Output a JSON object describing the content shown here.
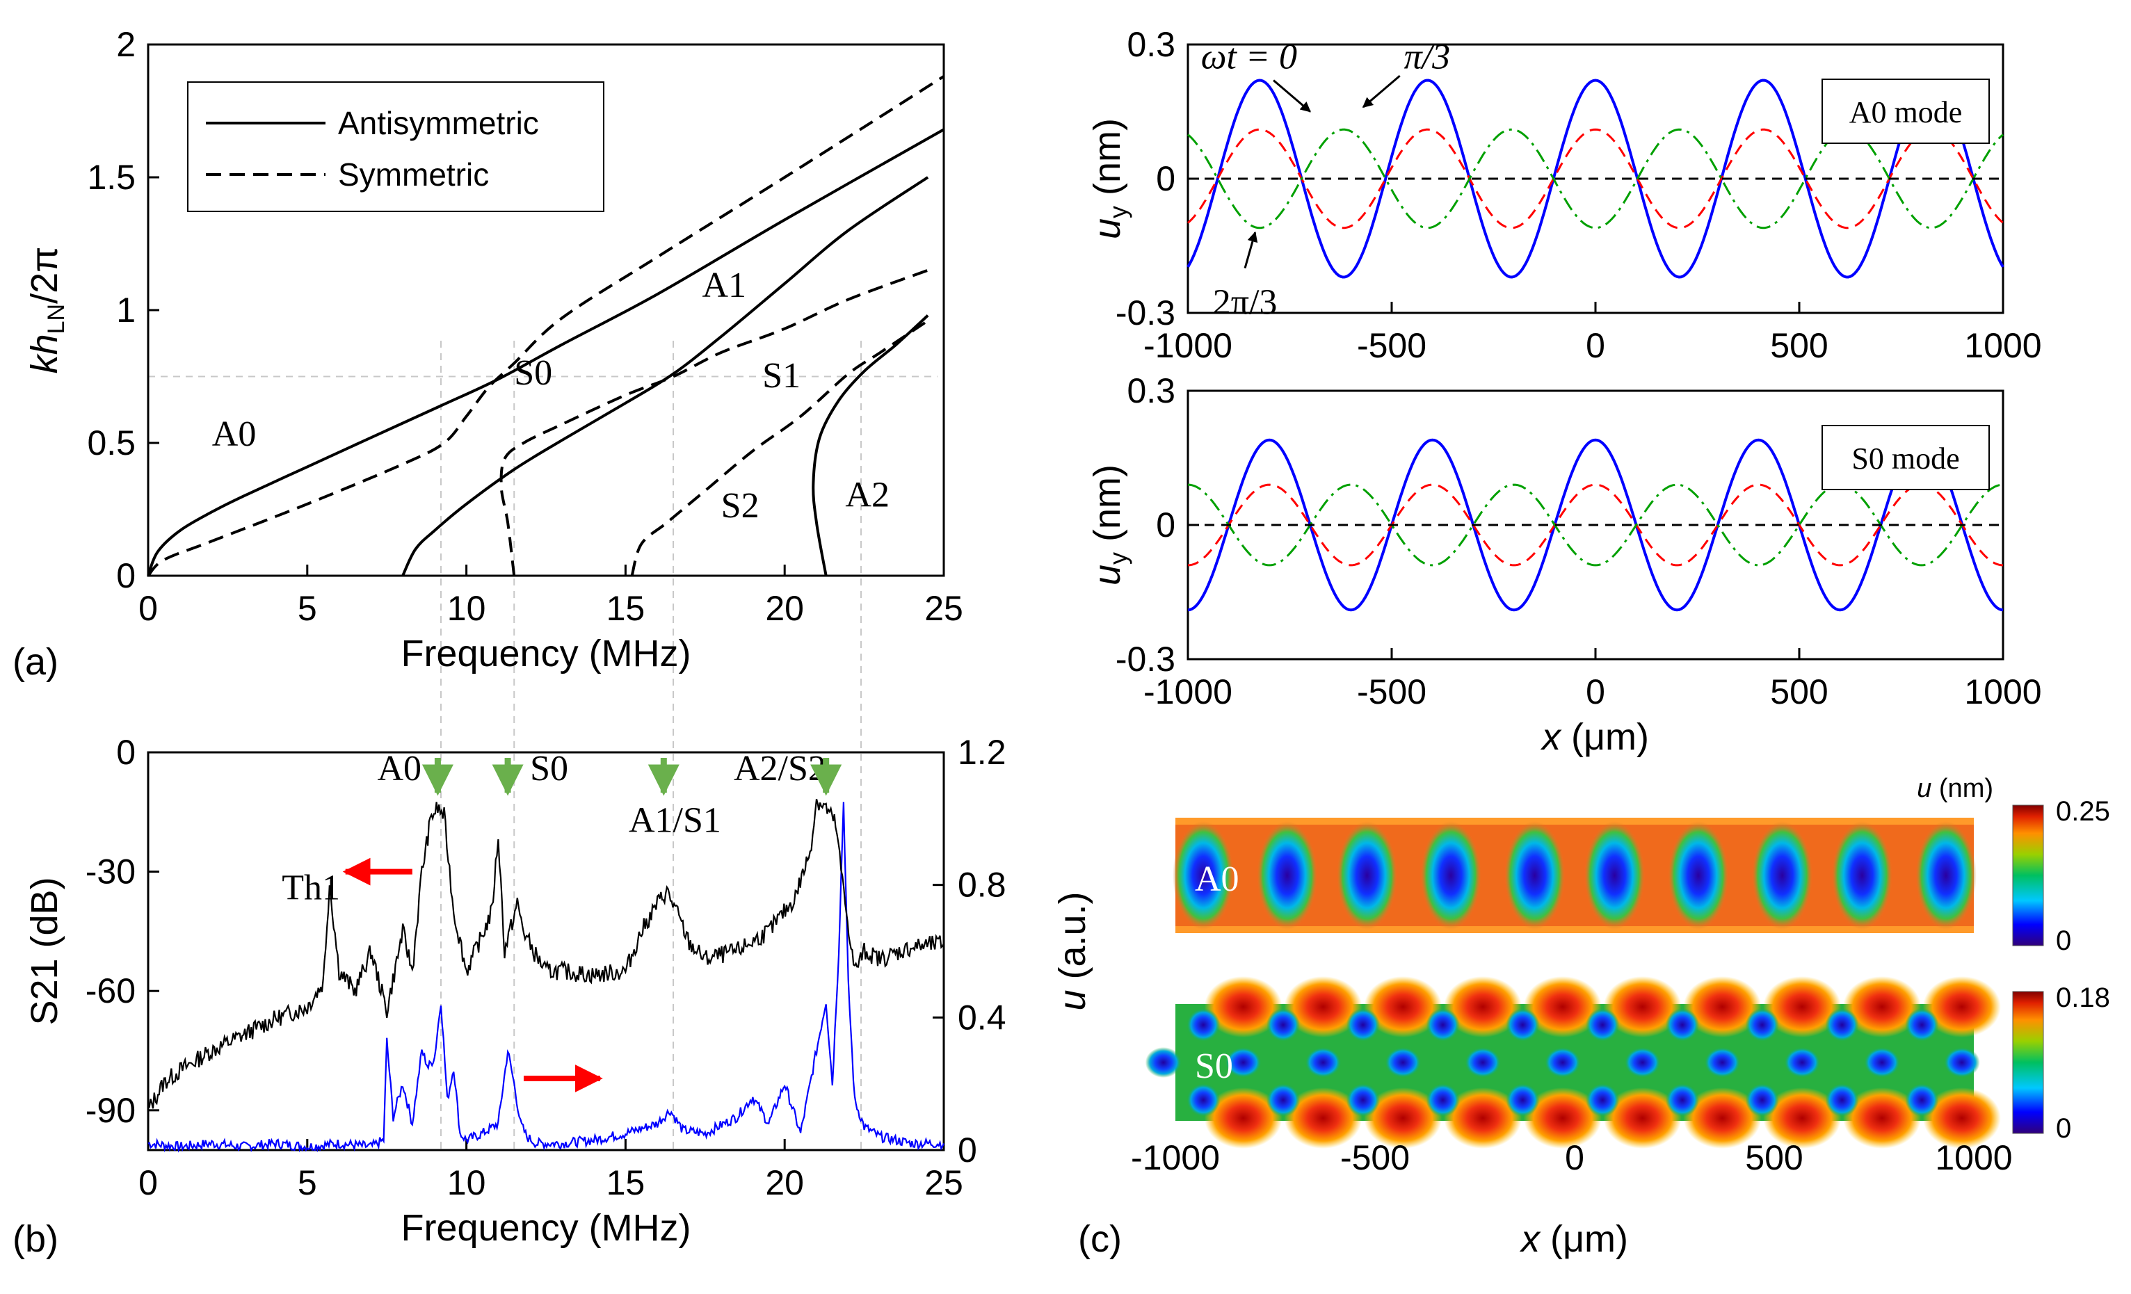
{
  "chart_data": [
    {
      "panel": "(a)",
      "type": "line",
      "title": "",
      "xlabel": "Frequency (MHz)",
      "ylabel_main": "kh",
      "ylabel_sub": "LN",
      "ylabel_tail": "/2π",
      "xlim": [
        0,
        25
      ],
      "ylim": [
        0,
        2
      ],
      "xticks": [
        "0",
        "5",
        "10",
        "15",
        "20",
        "25"
      ],
      "yticks": [
        "0",
        "0.5",
        "1",
        "1.5",
        "2"
      ],
      "legend": {
        "position": "top-left",
        "entries": [
          {
            "label": "Antisymmetric",
            "style": "solid"
          },
          {
            "label": "Symmetric",
            "style": "dashed"
          }
        ]
      },
      "reference_guides": {
        "horizontal_y": 0.75,
        "vertical_x": [
          9.2,
          11.5,
          16.5,
          22.4
        ]
      },
      "series": [
        {
          "name": "A0",
          "style": "solid",
          "x": [
            0,
            0.3,
            1,
            2,
            3,
            5,
            7,
            9.2,
            11,
            13,
            16,
            20,
            25
          ],
          "y": [
            0,
            0.09,
            0.17,
            0.24,
            0.3,
            0.41,
            0.52,
            0.64,
            0.74,
            0.87,
            1.06,
            1.34,
            1.68
          ]
        },
        {
          "name": "S0",
          "style": "dashed",
          "x": [
            0,
            0.5,
            2,
            5,
            8,
            9.3,
            10,
            10.7,
            11.5,
            13,
            16,
            20,
            25
          ],
          "y": [
            0,
            0.06,
            0.13,
            0.27,
            0.42,
            0.5,
            0.6,
            0.71,
            0.8,
            0.97,
            1.2,
            1.5,
            1.88
          ]
        },
        {
          "name": "A1",
          "style": "solid",
          "x": [
            8.0,
            8.4,
            9.0,
            10,
            11.5,
            13,
            15,
            16.5,
            18,
            20,
            22,
            24.5
          ],
          "y": [
            0,
            0.1,
            0.17,
            0.27,
            0.4,
            0.51,
            0.65,
            0.76,
            0.9,
            1.1,
            1.3,
            1.5
          ]
        },
        {
          "name": "S1",
          "style": "dashed",
          "x": [
            11.5,
            11.3,
            11.1,
            11.2,
            11.8,
            13,
            15,
            16.5,
            18,
            20,
            22,
            24.5
          ],
          "y": [
            0,
            0.2,
            0.33,
            0.44,
            0.5,
            0.57,
            0.68,
            0.75,
            0.84,
            0.93,
            1.04,
            1.15
          ]
        },
        {
          "name": "S2",
          "style": "dashed",
          "x": [
            15.2,
            15.5,
            16.3,
            17.5,
            19,
            20.5,
            22,
            23,
            24.5
          ],
          "y": [
            0,
            0.12,
            0.2,
            0.32,
            0.47,
            0.6,
            0.76,
            0.84,
            0.96
          ]
        },
        {
          "name": "A2",
          "style": "solid",
          "x": [
            21.3,
            21.0,
            20.9,
            21.1,
            21.7,
            22.5,
            23.5,
            24.5
          ],
          "y": [
            0,
            0.2,
            0.35,
            0.52,
            0.66,
            0.77,
            0.87,
            0.98
          ]
        }
      ],
      "curve_labels": [
        {
          "text": "A0",
          "x": 2.7,
          "y": 0.49
        },
        {
          "text": "S0",
          "x": 12.1,
          "y": 0.72
        },
        {
          "text": "A1",
          "x": 18.1,
          "y": 1.05
        },
        {
          "text": "S1",
          "x": 19.9,
          "y": 0.71
        },
        {
          "text": "S2",
          "x": 18.6,
          "y": 0.22
        },
        {
          "text": "A2",
          "x": 22.6,
          "y": 0.26
        }
      ]
    },
    {
      "panel": "(b)",
      "type": "line",
      "xlabel": "Frequency (MHz)",
      "ylabel_left": "S21 (dB)",
      "ylabel_right_main": "u",
      "ylabel_right_tail": " (a.u.)",
      "xlim": [
        0,
        25
      ],
      "ylim_left": [
        -100,
        0
      ],
      "ylim_right": [
        0,
        1.2
      ],
      "xticks": [
        "0",
        "5",
        "10",
        "15",
        "20",
        "25"
      ],
      "yticks_left": [
        "0",
        "-30",
        "-60",
        "-90"
      ],
      "yticks_left_values": [
        0,
        -30,
        -60,
        -90
      ],
      "yticks_right": [
        "0",
        "0.4",
        "0.8",
        "1.2"
      ],
      "yticks_right_values": [
        0,
        0.4,
        0.8,
        1.2
      ],
      "series": [
        {
          "name": "S21",
          "axis": "left",
          "color": "#000000",
          "x": [
            0,
            0.5,
            1,
            2,
            3,
            4,
            5,
            5.5,
            5.7,
            6,
            6.5,
            7,
            7.5,
            8,
            8.3,
            8.6,
            8.9,
            9.1,
            9.3,
            9.6,
            10,
            10.5,
            10.8,
            11.0,
            11.2,
            11.4,
            11.6,
            11.8,
            12.1,
            12.5,
            13,
            14,
            15,
            15.5,
            16,
            16.3,
            16.6,
            17,
            17.5,
            18.5,
            19.5,
            20.3,
            20.8,
            21.0,
            21.3,
            21.6,
            21.9,
            22.2,
            22.5,
            23,
            24,
            25
          ],
          "y": [
            -90,
            -83,
            -80,
            -75,
            -71,
            -67,
            -64,
            -58,
            -33,
            -55,
            -60,
            -50,
            -65,
            -45,
            -55,
            -30,
            -16,
            -14,
            -16,
            -40,
            -55,
            -46,
            -40,
            -21,
            -50,
            -44,
            -38,
            -45,
            -50,
            -55,
            -55,
            -56,
            -55,
            -45,
            -38,
            -35,
            -40,
            -48,
            -52,
            -50,
            -45,
            -37,
            -25,
            -12,
            -14,
            -18,
            -38,
            -55,
            -50,
            -52,
            -49,
            -48
          ]
        },
        {
          "name": "u",
          "axis": "right",
          "color": "#0000ff",
          "x": [
            0,
            1,
            2,
            3,
            4,
            5,
            6,
            7,
            7.4,
            7.5,
            7.7,
            8.0,
            8.3,
            8.6,
            8.8,
            9.0,
            9.2,
            9.4,
            9.6,
            9.8,
            10,
            10.5,
            11,
            11.3,
            11.5,
            11.7,
            11.9,
            12.2,
            13,
            14,
            15,
            16,
            16.4,
            16.8,
            17.5,
            18.5,
            19,
            19.5,
            20,
            20.5,
            21,
            21.3,
            21.5,
            21.7,
            21.85,
            22,
            22.2,
            22.5,
            23,
            24,
            25
          ],
          "y": [
            0.02,
            0.01,
            0.02,
            0.01,
            0.02,
            0.01,
            0.02,
            0.01,
            0.03,
            0.33,
            0.1,
            0.2,
            0.08,
            0.3,
            0.25,
            0.28,
            0.45,
            0.15,
            0.25,
            0.05,
            0.03,
            0.05,
            0.08,
            0.3,
            0.2,
            0.08,
            0.04,
            0.02,
            0.02,
            0.03,
            0.05,
            0.08,
            0.12,
            0.06,
            0.05,
            0.1,
            0.16,
            0.08,
            0.2,
            0.05,
            0.3,
            0.45,
            0.2,
            0.6,
            1.05,
            0.5,
            0.15,
            0.07,
            0.04,
            0.02,
            0.02
          ]
        }
      ],
      "reference_guides": {
        "vertical_x": [
          9.2,
          11.5,
          16.5,
          22.4
        ]
      },
      "annotations": [
        {
          "text": "Th1",
          "x": 4.2,
          "y": -37
        },
        {
          "text": "A0",
          "x": 7.2,
          "y": -7
        },
        {
          "text": "S0",
          "x": 12.0,
          "y": -7
        },
        {
          "text": "A1/S1",
          "x": 15.1,
          "y": -20
        },
        {
          "text": "A2/S2",
          "x": 18.4,
          "y": -7
        }
      ],
      "green_arrows_x": [
        9.1,
        11.3,
        16.2,
        21.3
      ],
      "red_arrows": [
        {
          "from": 8.3,
          "to": 6.2,
          "y": -30
        },
        {
          "from": 11.8,
          "to": 14.2,
          "y": -82
        }
      ]
    },
    {
      "panel": "top-right",
      "type": "line",
      "box_label": "A0 mode",
      "xlabel": "",
      "ylabel_main": "u",
      "ylabel_sub": "y",
      "ylabel_tail": " (nm)",
      "xlim": [
        -1000,
        1000
      ],
      "ylim": [
        -0.3,
        0.3
      ],
      "xticks": [
        "-1000",
        "-500",
        "0",
        "500",
        "1000"
      ],
      "yticks": [
        "0.3",
        "0",
        "-0.3"
      ],
      "wavelength_um": 412,
      "series": [
        {
          "name": "ωt = 0",
          "color": "#0000ff",
          "amplitude": 0.22,
          "style": "solid"
        },
        {
          "name": "π/3",
          "color": "#ff0000",
          "amplitude": 0.11,
          "style": "dashed"
        },
        {
          "name": "2π/3",
          "color": "#00a000",
          "amplitude": -0.11,
          "style": "dashdot"
        },
        {
          "name": "zero",
          "color": "#000000",
          "amplitude": 0,
          "style": "dashed"
        }
      ],
      "phase_labels": [
        {
          "text": "ωt = 0",
          "x": -850,
          "y": 0.24
        },
        {
          "text": "π/3",
          "x": -470,
          "y": 0.24
        },
        {
          "text": "2π/3",
          "x": -860,
          "y": -0.24
        }
      ]
    },
    {
      "panel": "middle-right",
      "type": "line",
      "box_label": "S0 mode",
      "xlabel": "x (μm)",
      "ylabel_main": "u",
      "ylabel_sub": "y",
      "ylabel_tail": " (nm)",
      "xlim": [
        -1000,
        1000
      ],
      "ylim": [
        -0.3,
        0.3
      ],
      "xticks": [
        "-1000",
        "-500",
        "0",
        "500",
        "1000"
      ],
      "yticks": [
        "0.3",
        "0",
        "-0.3"
      ],
      "wavelength_um": 400,
      "series": [
        {
          "name": "ωt = 0",
          "color": "#0000ff",
          "amplitude": 0.19,
          "style": "solid"
        },
        {
          "name": "π/3",
          "color": "#ff0000",
          "amplitude": 0.09,
          "style": "dashed"
        },
        {
          "name": "2π/3",
          "color": "#00a000",
          "amplitude": -0.09,
          "style": "dashdot"
        },
        {
          "name": "zero",
          "color": "#000000",
          "amplitude": 0,
          "style": "dashed"
        }
      ]
    },
    {
      "panel": "(c)",
      "type": "heatmap",
      "xlabel": "x (μm)",
      "xlim": [
        -1000,
        1000
      ],
      "xticks": [
        "-1000",
        "-500",
        "0",
        "500",
        "1000"
      ],
      "colorbar_title": "u (nm)",
      "maps": [
        {
          "label": "A0",
          "max": "0.25",
          "min": "0",
          "pattern": "single row of low-amplitude ellipses",
          "spots_x": [
            -930,
            -720,
            -520,
            -310,
            -100,
            100,
            310,
            520,
            720,
            930
          ]
        },
        {
          "label": "S0",
          "max": "0.18",
          "min": "0",
          "pattern": "three rows of low-amplitude spots with high-amplitude lobes at edges",
          "spots_x": [
            -930,
            -730,
            -530,
            -330,
            -130,
            70,
            270,
            470,
            670,
            870
          ]
        }
      ]
    }
  ]
}
